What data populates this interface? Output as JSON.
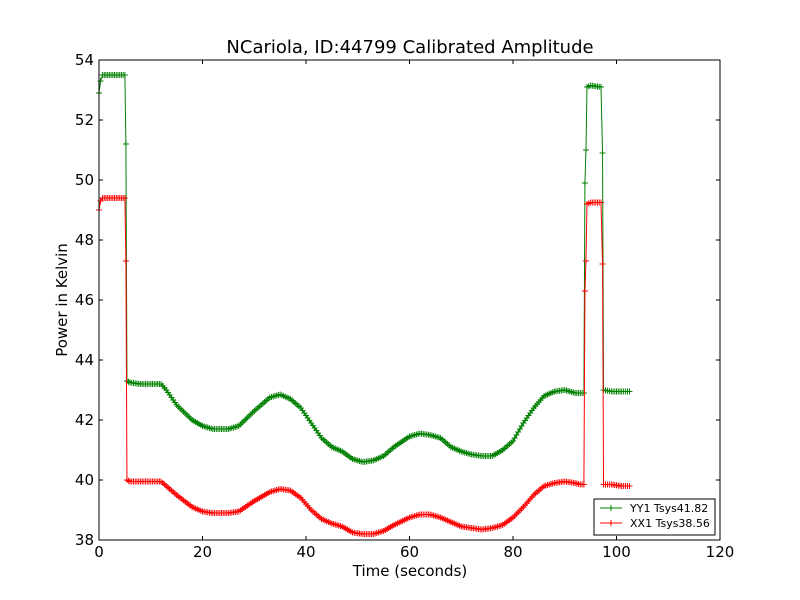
{
  "chart_data": {
    "type": "line",
    "title": "NCariola, ID:44799 Calibrated Amplitude",
    "xlabel": "Time (seconds)",
    "ylabel": "Power in Kelvin",
    "xlim": [
      0,
      120
    ],
    "ylim": [
      38,
      54
    ],
    "xticks": [
      0,
      20,
      40,
      60,
      80,
      100,
      120
    ],
    "yticks": [
      38,
      40,
      42,
      44,
      46,
      48,
      50,
      52,
      54
    ],
    "grid": false,
    "legend_position": "lower-right",
    "marker": "+",
    "series": [
      {
        "name": "YY1 Tsys41.82",
        "color": "#008000",
        "points": [
          [
            0,
            52.9
          ],
          [
            0.3,
            53.3
          ],
          [
            0.7,
            53.5
          ],
          [
            2,
            53.5
          ],
          [
            4,
            53.5
          ],
          [
            5,
            53.5
          ],
          [
            5.2,
            51.2
          ],
          [
            5.4,
            43.3
          ],
          [
            6,
            43.25
          ],
          [
            8,
            43.2
          ],
          [
            10,
            43.2
          ],
          [
            12,
            43.2
          ],
          [
            13,
            43.0
          ],
          [
            15,
            42.5
          ],
          [
            18,
            42.0
          ],
          [
            20,
            41.8
          ],
          [
            22,
            41.7
          ],
          [
            25,
            41.7
          ],
          [
            27,
            41.8
          ],
          [
            30,
            42.3
          ],
          [
            33,
            42.75
          ],
          [
            35,
            42.85
          ],
          [
            37,
            42.7
          ],
          [
            39,
            42.4
          ],
          [
            41,
            41.9
          ],
          [
            43,
            41.4
          ],
          [
            45,
            41.1
          ],
          [
            47,
            40.95
          ],
          [
            49,
            40.7
          ],
          [
            51,
            40.6
          ],
          [
            53,
            40.65
          ],
          [
            55,
            40.8
          ],
          [
            57,
            41.1
          ],
          [
            60,
            41.45
          ],
          [
            62,
            41.55
          ],
          [
            64,
            41.5
          ],
          [
            66,
            41.4
          ],
          [
            68,
            41.1
          ],
          [
            70,
            40.95
          ],
          [
            72,
            40.85
          ],
          [
            74,
            40.8
          ],
          [
            76,
            40.8
          ],
          [
            78,
            41.0
          ],
          [
            80,
            41.3
          ],
          [
            82,
            41.9
          ],
          [
            84,
            42.4
          ],
          [
            86,
            42.8
          ],
          [
            88,
            42.95
          ],
          [
            90,
            43.0
          ],
          [
            92,
            42.9
          ],
          [
            93,
            42.9
          ],
          [
            93.7,
            42.9
          ],
          [
            93.9,
            49.9
          ],
          [
            94.1,
            51.0
          ],
          [
            94.3,
            53.1
          ],
          [
            95,
            53.15
          ],
          [
            97,
            53.1
          ],
          [
            97.3,
            50.9
          ],
          [
            97.5,
            43.0
          ],
          [
            99,
            42.95
          ],
          [
            101,
            42.95
          ],
          [
            102.5,
            42.95
          ]
        ]
      },
      {
        "name": "XX1 Tsys38.56",
        "color": "#ff0000",
        "points": [
          [
            0,
            49.0
          ],
          [
            0.3,
            49.3
          ],
          [
            0.7,
            49.4
          ],
          [
            2,
            49.4
          ],
          [
            4,
            49.4
          ],
          [
            5,
            49.4
          ],
          [
            5.2,
            47.3
          ],
          [
            5.4,
            40.0
          ],
          [
            6,
            39.95
          ],
          [
            8,
            39.95
          ],
          [
            10,
            39.95
          ],
          [
            12,
            39.95
          ],
          [
            13,
            39.8
          ],
          [
            15,
            39.5
          ],
          [
            18,
            39.1
          ],
          [
            20,
            38.95
          ],
          [
            22,
            38.9
          ],
          [
            25,
            38.9
          ],
          [
            27,
            38.95
          ],
          [
            30,
            39.3
          ],
          [
            33,
            39.6
          ],
          [
            35,
            39.7
          ],
          [
            37,
            39.65
          ],
          [
            39,
            39.4
          ],
          [
            41,
            39.0
          ],
          [
            43,
            38.7
          ],
          [
            45,
            38.55
          ],
          [
            47,
            38.45
          ],
          [
            49,
            38.25
          ],
          [
            51,
            38.2
          ],
          [
            53,
            38.2
          ],
          [
            55,
            38.3
          ],
          [
            57,
            38.5
          ],
          [
            60,
            38.75
          ],
          [
            62,
            38.85
          ],
          [
            64,
            38.85
          ],
          [
            66,
            38.75
          ],
          [
            68,
            38.6
          ],
          [
            70,
            38.45
          ],
          [
            72,
            38.4
          ],
          [
            74,
            38.35
          ],
          [
            76,
            38.4
          ],
          [
            78,
            38.5
          ],
          [
            80,
            38.75
          ],
          [
            82,
            39.1
          ],
          [
            84,
            39.5
          ],
          [
            86,
            39.8
          ],
          [
            88,
            39.9
          ],
          [
            90,
            39.95
          ],
          [
            92,
            39.9
          ],
          [
            93,
            39.85
          ],
          [
            93.7,
            39.85
          ],
          [
            93.9,
            46.3
          ],
          [
            94.1,
            47.3
          ],
          [
            94.3,
            49.2
          ],
          [
            95,
            49.25
          ],
          [
            97,
            49.25
          ],
          [
            97.3,
            47.2
          ],
          [
            97.5,
            39.85
          ],
          [
            99,
            39.85
          ],
          [
            101,
            39.8
          ],
          [
            102.5,
            39.8
          ]
        ]
      }
    ]
  }
}
